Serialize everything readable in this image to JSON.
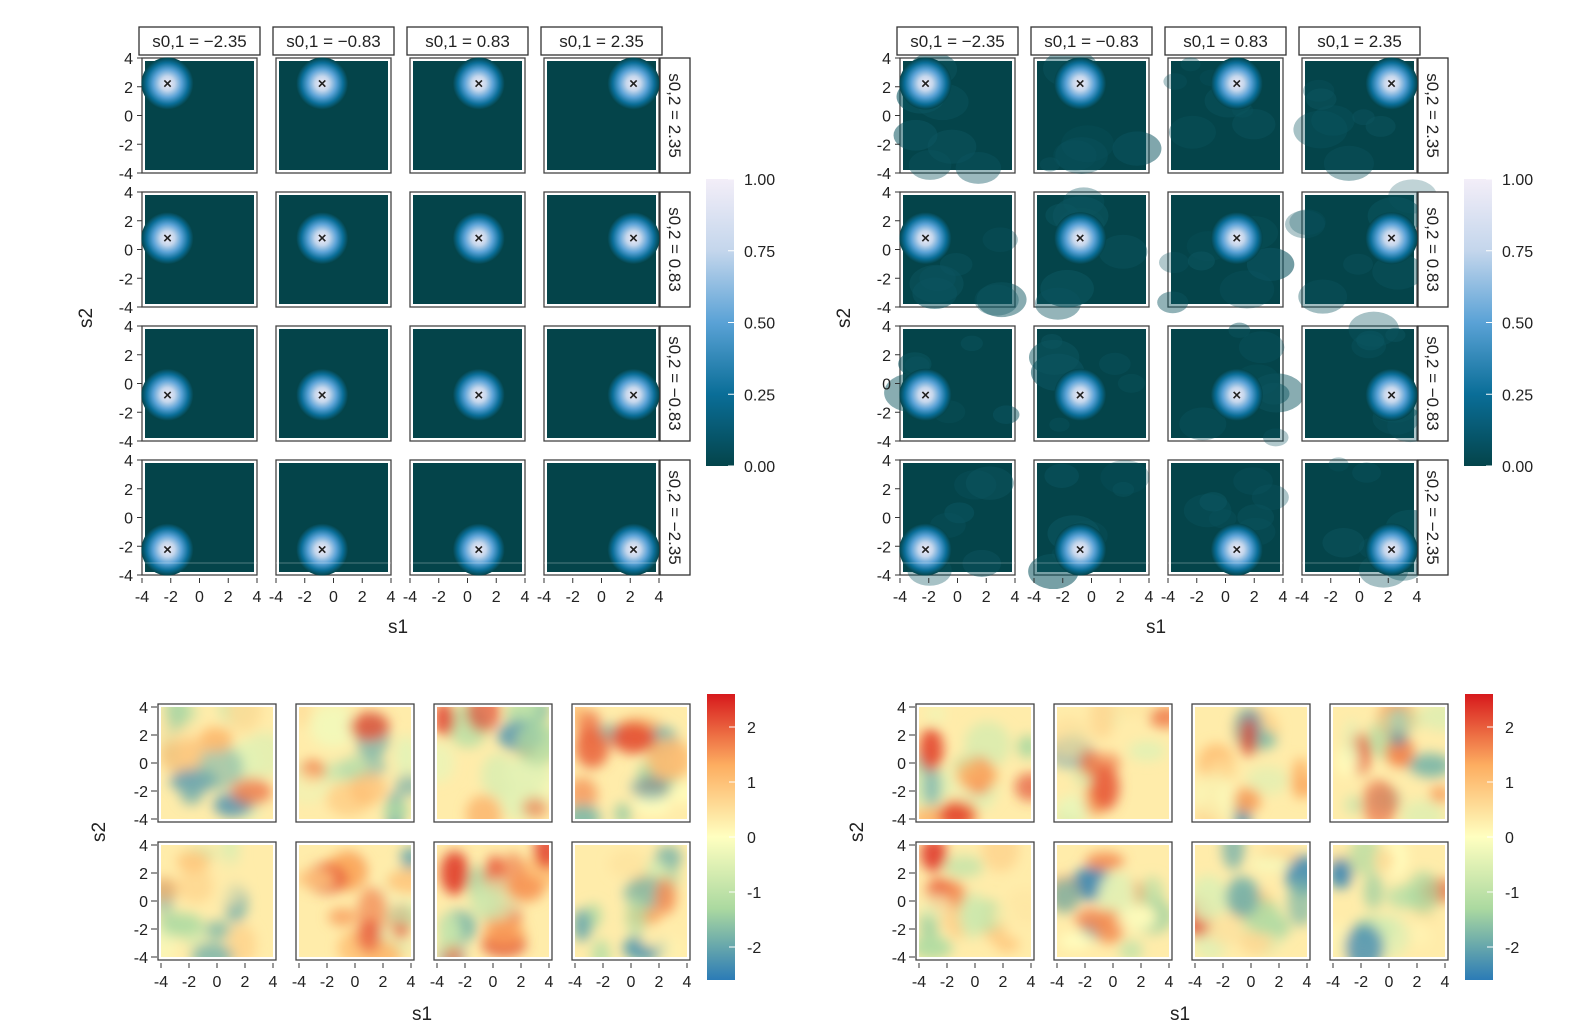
{
  "chart_data": [
    {
      "type": "heatmap",
      "panel": "kernel-grid",
      "variant": "true",
      "col_strip_labels": [
        "s0,1 = −2.35",
        "s0,1 = −0.83",
        "s0,1 = 0.83",
        "s0,1 = 2.35"
      ],
      "row_strip_labels": [
        "s0,2 = 2.35",
        "s0,2 = 0.83",
        "s0,2 = −0.83",
        "s0,2 = −2.35"
      ],
      "centers_s01": [
        -2.35,
        -0.83,
        0.83,
        2.35
      ],
      "centers_s02": [
        2.35,
        0.83,
        -0.83,
        -2.35
      ],
      "marker": "x",
      "xlabel": "s1",
      "ylabel": "s2",
      "xlim": [
        -4,
        4
      ],
      "ylim": [
        -4,
        4
      ],
      "xticks": [
        "-4",
        "-2",
        "0",
        "2",
        "4"
      ],
      "yticks": [
        "4",
        "2",
        "0",
        "-2",
        "-4"
      ],
      "colorbar": {
        "min": 0,
        "max": 1,
        "ticks": [
          "1.00",
          "0.75",
          "0.50",
          "0.25",
          "0.00"
        ]
      },
      "colormap": [
        "#04444a",
        "#0a6e98",
        "#5aa2d6",
        "#c4d6ec",
        "#f3eef8"
      ]
    },
    {
      "type": "heatmap",
      "panel": "kernel-grid",
      "variant": "estimated",
      "col_strip_labels": [
        "s0,1 = −2.35",
        "s0,1 = −0.83",
        "s0,1 = 0.83",
        "s0,1 = 2.35"
      ],
      "row_strip_labels": [
        "s0,2 = 2.35",
        "s0,2 = 0.83",
        "s0,2 = −0.83",
        "s0,2 = −2.35"
      ],
      "centers_s01": [
        -2.35,
        -0.83,
        0.83,
        2.35
      ],
      "centers_s02": [
        2.35,
        0.83,
        -0.83,
        -2.35
      ],
      "marker": "x",
      "xlabel": "s1",
      "ylabel": "s2",
      "xlim": [
        -4,
        4
      ],
      "ylim": [
        -4,
        4
      ],
      "xticks": [
        "-4",
        "-2",
        "0",
        "2",
        "4"
      ],
      "yticks": [
        "4",
        "2",
        "0",
        "-2",
        "-4"
      ],
      "colorbar": {
        "min": 0,
        "max": 1,
        "ticks": [
          "1.00",
          "0.75",
          "0.50",
          "0.25",
          "0.00"
        ]
      },
      "colormap": [
        "#04444a",
        "#0a6e98",
        "#5aa2d6",
        "#c4d6ec",
        "#f3eef8"
      ]
    },
    {
      "type": "heatmap",
      "panel": "field-samples",
      "variant": "left",
      "rows": 2,
      "cols": 4,
      "xlabel": "s1",
      "ylabel": "s2",
      "xlim": [
        -4,
        4
      ],
      "ylim": [
        -4,
        4
      ],
      "xticks": [
        "-4",
        "-2",
        "0",
        "2",
        "4"
      ],
      "yticks": [
        "4",
        "2",
        "0",
        "-2",
        "-4"
      ],
      "colorbar": {
        "min": -2.6,
        "max": 2.6,
        "ticks": [
          "2",
          "1",
          "0",
          "-1",
          "-2"
        ],
        "tick_values": [
          2,
          1,
          0,
          -1,
          -2
        ]
      },
      "colormap": [
        "#2b7bb6",
        "#abd9a0",
        "#ffffc0",
        "#fdae61",
        "#d7191c"
      ]
    },
    {
      "type": "heatmap",
      "panel": "field-samples",
      "variant": "right",
      "rows": 2,
      "cols": 4,
      "xlabel": "s1",
      "ylabel": "s2",
      "xlim": [
        -4,
        4
      ],
      "ylim": [
        -4,
        4
      ],
      "xticks": [
        "-4",
        "-2",
        "0",
        "2",
        "4"
      ],
      "yticks": [
        "4",
        "2",
        "0",
        "-2",
        "-4"
      ],
      "colorbar": {
        "min": -2.6,
        "max": 2.6,
        "ticks": [
          "2",
          "1",
          "0",
          "-1",
          "-2"
        ],
        "tick_values": [
          2,
          1,
          0,
          -1,
          -2
        ]
      },
      "colormap": [
        "#2b7bb6",
        "#abd9a0",
        "#ffffc0",
        "#fdae61",
        "#d7191c"
      ]
    }
  ]
}
